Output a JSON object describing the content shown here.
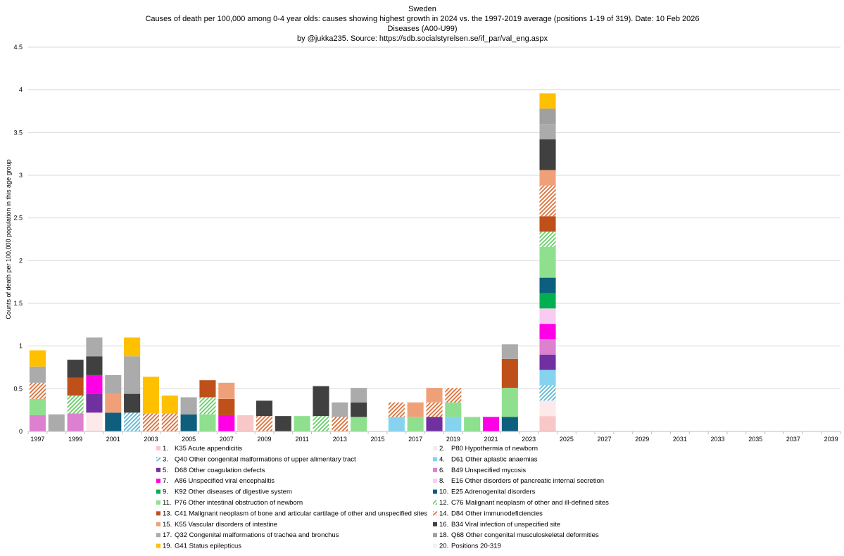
{
  "chart_data": {
    "type": "bar",
    "stacked": true,
    "title": "Sweden",
    "subtitle_lines": [
      "Causes of death per 100,000 among 0-4 year olds: causes showing highest growth in 2024 vs. the 1997-2019 average (positions 1-19 of 319). Date: 10 Feb 2026",
      "Diseases (A00-U99)",
      "by @jukka235. Source: https://sdb.socialstyrelsen.se/if_par/val_eng.aspx"
    ],
    "xlabel": "",
    "ylabel": "Counts of death per 100,000 population in this age group",
    "ylim": [
      0,
      4.5
    ],
    "yticks": [
      "0",
      "0.5",
      "1",
      "1.5",
      "2",
      "2.5",
      "3",
      "3.5",
      "4",
      "4.5"
    ],
    "grid": true,
    "legend_position": "bottom",
    "x_start": 1997,
    "x_end": 2040,
    "xtick_labels": [
      "1997",
      "1999",
      "2001",
      "2003",
      "2005",
      "2007",
      "2009",
      "2011",
      "2013",
      "2015",
      "2017",
      "2019",
      "2021",
      "2023",
      "2025",
      "2027",
      "2029",
      "2031",
      "2033",
      "2035",
      "2037",
      "2039"
    ],
    "series": [
      {
        "name": "K35 Acute appendicitis",
        "number": "1.",
        "color": "#F8C8C8",
        "pattern": "solid"
      },
      {
        "name": "P80 Hypothermia of newborn",
        "number": "2.",
        "color": "#FDE9E9",
        "pattern": "solid"
      },
      {
        "name": "Q40 Other congenital malformations of upper alimentary tract",
        "number": "3.",
        "color": "#5BB8D8",
        "pattern": "hatch"
      },
      {
        "name": "D61 Other aplastic anaemias",
        "number": "4.",
        "color": "#86D3F0",
        "pattern": "solid"
      },
      {
        "name": "D68 Other coagulation defects",
        "number": "5.",
        "color": "#7030A0",
        "pattern": "solid"
      },
      {
        "name": "B49 Unspecified mycosis",
        "number": "6.",
        "color": "#DD80D0",
        "pattern": "solid"
      },
      {
        "name": "A86 Unspecified viral encephalitis",
        "number": "7.",
        "color": "#FF00E6",
        "pattern": "solid"
      },
      {
        "name": "E16 Other disorders of pancreatic internal secretion",
        "number": "8.",
        "color": "#F8CCF2",
        "pattern": "solid"
      },
      {
        "name": "K92 Other diseases of digestive system",
        "number": "9.",
        "color": "#00B050",
        "pattern": "solid"
      },
      {
        "name": "E25 Adrenogenital disorders",
        "number": "10.",
        "color": "#0E5F7E",
        "pattern": "solid"
      },
      {
        "name": "P76 Other intestinal obstruction of newborn",
        "number": "11.",
        "color": "#8EE08E",
        "pattern": "solid"
      },
      {
        "name": "C76 Malignant neoplasm of other and ill-defined sites",
        "number": "12.",
        "color": "#68CC68",
        "pattern": "hatch"
      },
      {
        "name": "C41 Malignant neoplasm of bone and articular cartilage of other and unspecified sites",
        "number": "13.",
        "color": "#C0501A",
        "pattern": "solid"
      },
      {
        "name": "D84 Other immunodeficiencies",
        "number": "14.",
        "color": "#D9703A",
        "pattern": "hatch"
      },
      {
        "name": "K55 Vascular disorders of intestine",
        "number": "15.",
        "color": "#F0A078",
        "pattern": "solid"
      },
      {
        "name": "B34 Viral infection of unspecified site",
        "number": "16.",
        "color": "#404040",
        "pattern": "solid"
      },
      {
        "name": "Q32 Congenital malformations of trachea and bronchus",
        "number": "17.",
        "color": "#ABABAB",
        "pattern": "solid"
      },
      {
        "name": "Q68 Other congenital musculoskeletal deformities",
        "number": "18.",
        "color": "#A0A0A0",
        "pattern": "solid"
      },
      {
        "name": "G41 Status epilepticus",
        "number": "19.",
        "color": "#FFC000",
        "pattern": "solid"
      },
      {
        "name": "Positions 20-319",
        "number": "20.",
        "color": "#EAF4FA",
        "pattern": "solid"
      }
    ],
    "bars": [
      {
        "year": 1997,
        "stack": [
          [
            6,
            0.19
          ],
          [
            11,
            0.19
          ],
          [
            14,
            0.19
          ],
          [
            17,
            0.19
          ],
          [
            19,
            0.19
          ]
        ]
      },
      {
        "year": 1998,
        "stack": [
          [
            17,
            0.2
          ]
        ]
      },
      {
        "year": 1999,
        "stack": [
          [
            6,
            0.21
          ],
          [
            12,
            0.21
          ],
          [
            13,
            0.21
          ],
          [
            16,
            0.21
          ]
        ]
      },
      {
        "year": 2000,
        "stack": [
          [
            2,
            0.22
          ],
          [
            5,
            0.22
          ],
          [
            7,
            0.22
          ],
          [
            16,
            0.22
          ],
          [
            17,
            0.22
          ]
        ]
      },
      {
        "year": 2001,
        "stack": [
          [
            10,
            0.22
          ],
          [
            15,
            0.22
          ],
          [
            17,
            0.22
          ]
        ]
      },
      {
        "year": 2002,
        "stack": [
          [
            3,
            0.22
          ],
          [
            16,
            0.22
          ],
          [
            17,
            0.44
          ],
          [
            19,
            0.22
          ]
        ]
      },
      {
        "year": 2003,
        "stack": [
          [
            14,
            0.21
          ],
          [
            19,
            0.43
          ]
        ]
      },
      {
        "year": 2004,
        "stack": [
          [
            14,
            0.21
          ],
          [
            19,
            0.21
          ]
        ]
      },
      {
        "year": 2005,
        "stack": [
          [
            10,
            0.2
          ],
          [
            17,
            0.2
          ]
        ]
      },
      {
        "year": 2006,
        "stack": [
          [
            11,
            0.2
          ],
          [
            12,
            0.2
          ],
          [
            13,
            0.2
          ]
        ]
      },
      {
        "year": 2007,
        "stack": [
          [
            7,
            0.19
          ],
          [
            13,
            0.19
          ],
          [
            15,
            0.19
          ]
        ]
      },
      {
        "year": 2008,
        "stack": [
          [
            1,
            0.19
          ]
        ]
      },
      {
        "year": 2009,
        "stack": [
          [
            14,
            0.18
          ],
          [
            16,
            0.18
          ]
        ]
      },
      {
        "year": 2010,
        "stack": [
          [
            16,
            0.18
          ]
        ]
      },
      {
        "year": 2011,
        "stack": [
          [
            11,
            0.18
          ]
        ]
      },
      {
        "year": 2012,
        "stack": [
          [
            12,
            0.18
          ],
          [
            16,
            0.35
          ]
        ]
      },
      {
        "year": 2013,
        "stack": [
          [
            14,
            0.17
          ],
          [
            17,
            0.17
          ]
        ]
      },
      {
        "year": 2014,
        "stack": [
          [
            11,
            0.17
          ],
          [
            16,
            0.17
          ],
          [
            17,
            0.17
          ]
        ]
      },
      {
        "year": 2015,
        "stack": []
      },
      {
        "year": 2016,
        "stack": [
          [
            4,
            0.17
          ],
          [
            14,
            0.17
          ]
        ]
      },
      {
        "year": 2017,
        "stack": [
          [
            11,
            0.17
          ],
          [
            15,
            0.17
          ]
        ]
      },
      {
        "year": 2018,
        "stack": [
          [
            5,
            0.17
          ],
          [
            14,
            0.17
          ],
          [
            15,
            0.17
          ]
        ]
      },
      {
        "year": 2019,
        "stack": [
          [
            4,
            0.17
          ],
          [
            11,
            0.17
          ],
          [
            14,
            0.17
          ]
        ]
      },
      {
        "year": 2020,
        "stack": [
          [
            11,
            0.17
          ]
        ]
      },
      {
        "year": 2021,
        "stack": [
          [
            7,
            0.17
          ]
        ]
      },
      {
        "year": 2022,
        "stack": [
          [
            10,
            0.17
          ],
          [
            11,
            0.34
          ],
          [
            13,
            0.34
          ],
          [
            17,
            0.17
          ]
        ]
      },
      {
        "year": 2023,
        "stack": []
      },
      {
        "year": 2024,
        "stack": [
          [
            1,
            0.18
          ],
          [
            2,
            0.18
          ],
          [
            3,
            0.18
          ],
          [
            4,
            0.18
          ],
          [
            5,
            0.18
          ],
          [
            6,
            0.18
          ],
          [
            7,
            0.18
          ],
          [
            8,
            0.18
          ],
          [
            9,
            0.18
          ],
          [
            10,
            0.18
          ],
          [
            11,
            0.36
          ],
          [
            12,
            0.18
          ],
          [
            13,
            0.18
          ],
          [
            14,
            0.36
          ],
          [
            15,
            0.18
          ],
          [
            16,
            0.36
          ],
          [
            17,
            0.18
          ],
          [
            18,
            0.18
          ],
          [
            19,
            0.18
          ]
        ]
      }
    ]
  }
}
